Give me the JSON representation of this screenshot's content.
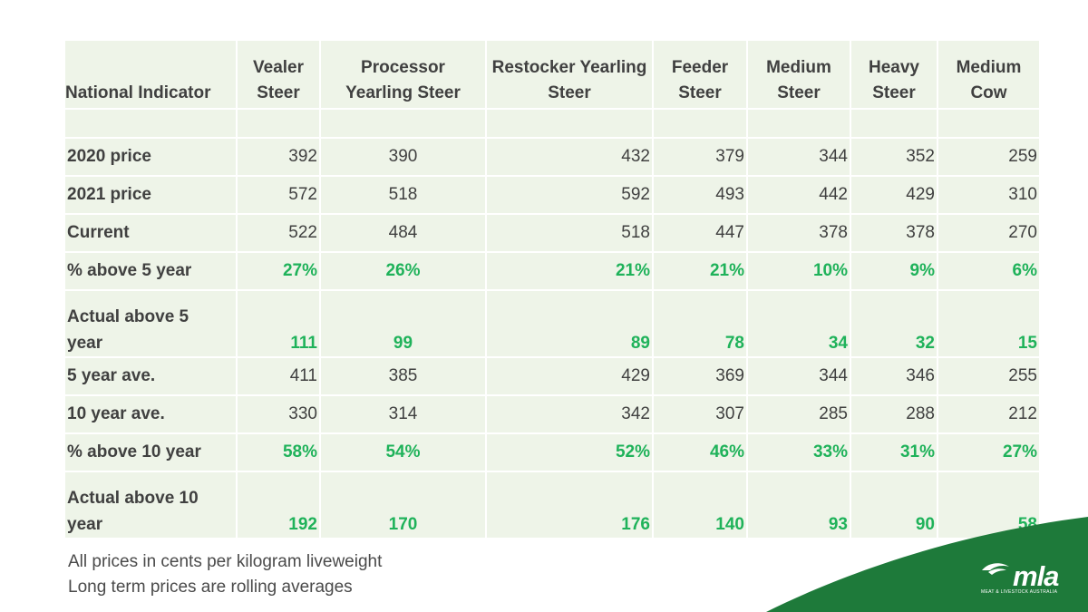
{
  "table": {
    "headers": [
      {
        "l1": "",
        "l2": "National Indicator"
      },
      {
        "l1": "Vealer",
        "l2": "Steer"
      },
      {
        "l1": "Processor",
        "l2": "Yearling Steer"
      },
      {
        "l1": "Restocker Yearling",
        "l2": "Steer"
      },
      {
        "l1": "Feeder",
        "l2": "Steer"
      },
      {
        "l1": "Medium",
        "l2": "Steer"
      },
      {
        "l1": "Heavy",
        "l2": "Steer"
      },
      {
        "l1": "Medium",
        "l2": "Cow"
      }
    ],
    "rows": [
      {
        "label": "2020 price",
        "values": [
          "392",
          "390",
          "432",
          "379",
          "344",
          "352",
          "259"
        ]
      },
      {
        "label": "2021 price",
        "values": [
          "572",
          "518",
          "592",
          "493",
          "442",
          "429",
          "310"
        ]
      },
      {
        "label": "Current",
        "values": [
          "522",
          "484",
          "518",
          "447",
          "378",
          "378",
          "270"
        ]
      },
      {
        "label": "% above 5 year",
        "values": [
          "27%",
          "26%",
          "21%",
          "21%",
          "10%",
          "9%",
          "6%"
        ]
      },
      {
        "label_l1": "Actual above 5",
        "label_l2": "year",
        "values": [
          "111",
          "99",
          "89",
          "78",
          "34",
          "32",
          "15"
        ]
      },
      {
        "label": "5 year ave.",
        "values": [
          "411",
          "385",
          "429",
          "369",
          "344",
          "346",
          "255"
        ]
      },
      {
        "label": "10 year ave.",
        "values": [
          "330",
          "314",
          "342",
          "307",
          "285",
          "288",
          "212"
        ]
      },
      {
        "label": "% above 10 year",
        "values": [
          "58%",
          "54%",
          "52%",
          "46%",
          "33%",
          "31%",
          "27%"
        ]
      },
      {
        "label_l1": "Actual above 10",
        "label_l2": "year",
        "values": [
          "192",
          "170",
          "176",
          "140",
          "93",
          "90",
          "58"
        ]
      }
    ]
  },
  "footnotes": {
    "line1": "All prices in cents per kilogram liveweight",
    "line2": "Long term prices are rolling averages"
  },
  "logo": {
    "text": "mla",
    "subtext": "MEAT & LIVESTOCK AUSTRALIA",
    "icon": "mla-logo-icon"
  },
  "colors": {
    "table_bg": "#eef4e8",
    "text": "#404040",
    "highlight_green": "#1fb25a",
    "brand_green": "#1e7a3a"
  }
}
